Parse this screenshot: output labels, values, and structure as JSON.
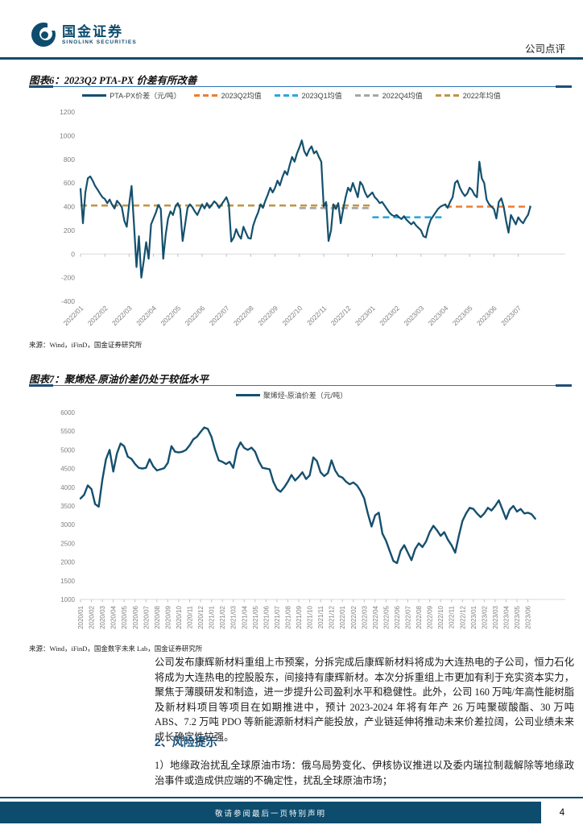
{
  "header": {
    "brand_cn": "国金证券",
    "brand_en": "SINOLINK SECURITIES",
    "doc_type": "公司点评"
  },
  "figure6": {
    "title": "图表6：2023Q2 PTA-PX 价差有所改善",
    "source": "来源：Wind，iFinD，国金证券研究所"
  },
  "figure7": {
    "title": "图表7：聚烯烃-原油价差仍处于较低水平",
    "source": "来源：Wind，iFinD，国金数字未来 Lab，国金证券研究所"
  },
  "body": {
    "paragraph1": "公司发布康辉新材料重组上市预案，分拆完成后康辉新材料将成为大连热电的子公司，恒力石化将成为大连热电的控股股东，间接持有康辉新材。本次分拆重组上市更加有利于充实资本实力，聚焦于薄膜研发和制造，进一步提升公司盈利水平和稳健性。此外，公司 160 万吨/年高性能树脂及新材料项目等项目在如期推进中，预计 2023-2024 年将有年产 26 万吨聚碳酸酯、30 万吨 ABS、7.2 万吨 PDO 等新能源新材料产能投放，产业链延伸将推动未来价差拉阔，公司业绩未来成长确定性较强。",
    "section_heading": "2、风险提示",
    "paragraph2": "1）地缘政治扰乱全球原油市场：俄乌局势变化、伊核协议推进以及委内瑞拉制裁解除等地缘政治事件或造成供应端的不确定性，扰乱全球原油市场；"
  },
  "footer": {
    "disclaimer": "敬请参阅最后一页特别声明",
    "page_number": "4"
  },
  "colors": {
    "navy_line": "#14506E",
    "orange": "#ED7D31",
    "cyan": "#29A8E0",
    "gray": "#A6A6A6",
    "gold": "#BF9545",
    "brand_bar": "#0D4C6D",
    "heading_navy": "#15507A",
    "tick_text": "#7F7F7F",
    "grid": "#D9D9D9"
  },
  "chart_data": [
    {
      "type": "line",
      "title": "2023Q2 PTA-PX 价差有所改善",
      "ylabel": "",
      "ylim": [
        -400,
        1200
      ],
      "yticks": [
        1200,
        1000,
        800,
        600,
        400,
        200,
        0,
        -200,
        -400
      ],
      "x_tick_labels": [
        "2022/01",
        "2022/02",
        "2022/03",
        "2022/04",
        "2022/05",
        "2022/06",
        "2022/07",
        "2022/08",
        "2022/09",
        "2022/10",
        "2022/11",
        "2022/12",
        "2023/01",
        "2023/02",
        "2023/03",
        "2023/04",
        "2023/05",
        "2023/06",
        "2023/07"
      ],
      "legend_position": "top",
      "grid": "y-zero-only",
      "series": [
        {
          "name": "PTA-PX价差（元/吨）",
          "style": "solid",
          "color": "#14506E",
          "values": [
            550,
            260,
            520,
            640,
            655,
            620,
            575,
            545,
            510,
            480,
            465,
            430,
            460,
            415,
            385,
            450,
            425,
            395,
            280,
            230,
            420,
            575,
            250,
            -110,
            150,
            -200,
            -60,
            100,
            -40,
            250,
            300,
            350,
            415,
            380,
            -40,
            160,
            300,
            360,
            330,
            400,
            430,
            380,
            110,
            250,
            390,
            420,
            395,
            360,
            330,
            375,
            420,
            385,
            430,
            390,
            415,
            445,
            425,
            390,
            420,
            450,
            480,
            420,
            105,
            140,
            210,
            160,
            130,
            230,
            180,
            135,
            130,
            240,
            300,
            350,
            420,
            390,
            450,
            500,
            560,
            520,
            560,
            620,
            580,
            650,
            700,
            670,
            750,
            820,
            780,
            850,
            900,
            960,
            870,
            830,
            880,
            910,
            850,
            870,
            820,
            780,
            400,
            440,
            110,
            200,
            420,
            380,
            430,
            260,
            380,
            480,
            560,
            530,
            600,
            540,
            480,
            610,
            580,
            520,
            480,
            500,
            520,
            480,
            460,
            430,
            440,
            410,
            380,
            350,
            330,
            320,
            330,
            310,
            295,
            320,
            290,
            270,
            250,
            270,
            240,
            220,
            200,
            150,
            140,
            230,
            290,
            320,
            350,
            380,
            400,
            410,
            420,
            390,
            440,
            480,
            600,
            620,
            560,
            520,
            490,
            510,
            560,
            540,
            500,
            480,
            780,
            640,
            600,
            460,
            420,
            400,
            380,
            300,
            440,
            470,
            400,
            280,
            180,
            330,
            290,
            250,
            310,
            280,
            260,
            300,
            330,
            400
          ]
        },
        {
          "name": "2023Q2均值",
          "style": "dashed",
          "color": "#ED7D31",
          "value": 400,
          "x_range_months": [
            15,
            18.5
          ]
        },
        {
          "name": "2023Q1均值",
          "style": "dashed",
          "color": "#29A8E0",
          "value": 310,
          "x_range_months": [
            12,
            15
          ]
        },
        {
          "name": "2022Q4均值",
          "style": "dashed",
          "color": "#A6A6A6",
          "value": 388,
          "x_range_months": [
            9,
            12
          ]
        },
        {
          "name": "2022年均值",
          "style": "dashed",
          "color": "#BF9545",
          "value": 410,
          "x_range_months": [
            0,
            12
          ]
        }
      ]
    },
    {
      "type": "line",
      "title": "聚烯烃-原油价差仍处于较低水平",
      "ylabel": "",
      "ylim": [
        1000,
        6000
      ],
      "yticks": [
        6000,
        5500,
        5000,
        4500,
        4000,
        3500,
        3000,
        2500,
        2000,
        1500,
        1000
      ],
      "x_tick_labels": [
        "2020/01",
        "2020/02",
        "2020/03",
        "2020/04",
        "2020/05",
        "2020/06",
        "2020/07",
        "2020/08",
        "2020/09",
        "2020/10",
        "2020/11",
        "2020/12",
        "2021/01",
        "2021/02",
        "2021/03",
        "2021/04",
        "2021/05",
        "2021/06",
        "2021/07",
        "2021/08",
        "2021/09",
        "2021/10",
        "2021/11",
        "2021/12",
        "2022/01",
        "2022/02",
        "2022/03",
        "2022/04",
        "2022/05",
        "2022/06",
        "2022/07",
        "2022/08",
        "2022/09",
        "2022/10",
        "2022/11",
        "2022/12",
        "2023/01",
        "2023/02",
        "2023/03",
        "2023/04",
        "2023/05",
        "2023/06"
      ],
      "legend_position": "top",
      "grid": "baseline-only",
      "series": [
        {
          "name": "聚烯烃-原油价差（元/吨）",
          "style": "solid",
          "color": "#14506E",
          "values": [
            3700,
            3800,
            4050,
            3950,
            3550,
            3480,
            4200,
            4750,
            5000,
            4420,
            4900,
            5170,
            5100,
            4820,
            4760,
            4620,
            4520,
            4500,
            4520,
            4750,
            4560,
            4450,
            4480,
            4510,
            4650,
            5100,
            4950,
            4930,
            4950,
            5000,
            5120,
            5280,
            5350,
            5480,
            5600,
            5560,
            5350,
            5000,
            4720,
            4680,
            4620,
            4680,
            4520,
            5000,
            5200,
            5050,
            5000,
            5060,
            4950,
            4700,
            4520,
            4500,
            4480,
            4150,
            3950,
            3880,
            4000,
            4150,
            4330,
            4180,
            4280,
            4400,
            4220,
            4320,
            4800,
            4700,
            4400,
            4300,
            4380,
            4720,
            4450,
            4300,
            4260,
            4150,
            4080,
            4130,
            4050,
            3900,
            3700,
            3300,
            2950,
            3250,
            3320,
            2760,
            2570,
            2300,
            2030,
            1970,
            2300,
            2450,
            2250,
            2050,
            2350,
            2500,
            2400,
            2550,
            2800,
            2970,
            2850,
            2700,
            2800,
            2600,
            2450,
            2250,
            2700,
            3100,
            3300,
            3450,
            3420,
            3300,
            3200,
            3300,
            3450,
            3380,
            3500,
            3650,
            3400,
            3150,
            3400,
            3500,
            3350,
            3420,
            3300,
            3320,
            3280,
            3160
          ]
        }
      ]
    }
  ]
}
